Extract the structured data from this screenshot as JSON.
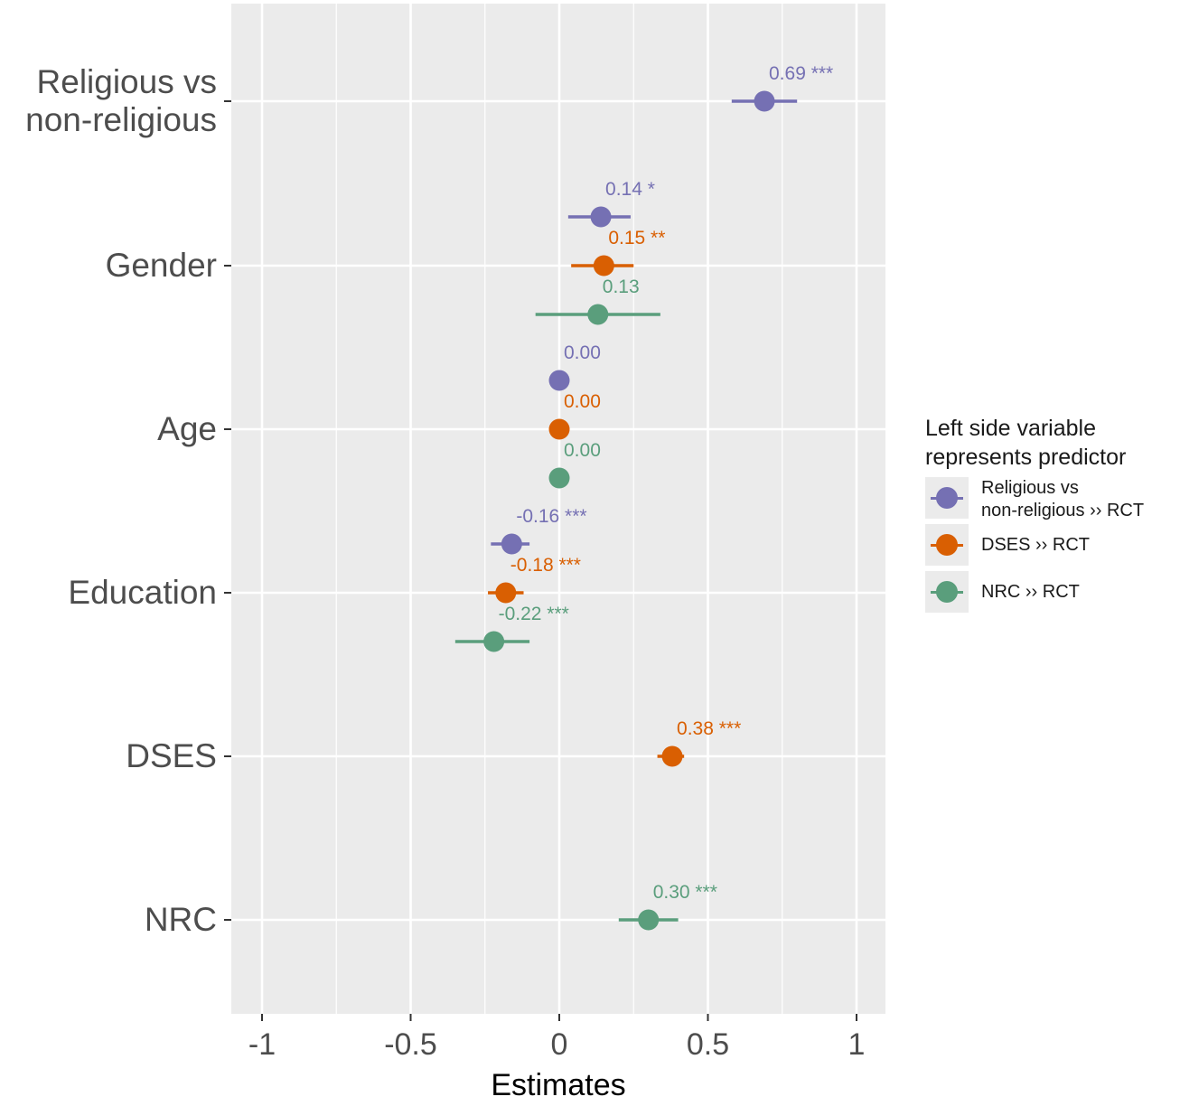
{
  "chart_data": {
    "type": "forest",
    "title": "",
    "xlabel": "Estimates",
    "ylabel": "",
    "xlim": [
      -1.1,
      1.1
    ],
    "x_ticks": [
      -1,
      -0.5,
      0,
      0.5,
      1
    ],
    "x_tick_labels": [
      "-1",
      "-0.5",
      "0",
      "0.5",
      "1"
    ],
    "grid": true,
    "categories": [
      {
        "label": "Religious vs\nnon-religious"
      },
      {
        "label": "Gender"
      },
      {
        "label": "Age"
      },
      {
        "label": "Education"
      },
      {
        "label": "DSES"
      },
      {
        "label": "NRC"
      }
    ],
    "series": [
      {
        "name": "Religious vs\nnon-religious ›› RCT",
        "color": "#7570b3",
        "points": [
          {
            "category": "Religious vs\nnon-religious",
            "estimate": 0.69,
            "ci": [
              0.58,
              0.8
            ],
            "label": "0.69 ***"
          },
          {
            "category": "Gender",
            "estimate": 0.14,
            "ci": [
              0.03,
              0.24
            ],
            "label": "0.14 *"
          },
          {
            "category": "Age",
            "estimate": 0.0,
            "ci": [
              0.0,
              0.0
            ],
            "label": "0.00"
          },
          {
            "category": "Education",
            "estimate": -0.16,
            "ci": [
              -0.23,
              -0.1
            ],
            "label": "-0.16 ***"
          }
        ]
      },
      {
        "name": "DSES ›› RCT",
        "color": "#d95f02",
        "points": [
          {
            "category": "Gender",
            "estimate": 0.15,
            "ci": [
              0.04,
              0.25
            ],
            "label": "0.15 **"
          },
          {
            "category": "Age",
            "estimate": 0.0,
            "ci": [
              0.0,
              0.0
            ],
            "label": "0.00"
          },
          {
            "category": "Education",
            "estimate": -0.18,
            "ci": [
              -0.24,
              -0.12
            ],
            "label": "-0.18 ***"
          },
          {
            "category": "DSES",
            "estimate": 0.38,
            "ci": [
              0.33,
              0.42
            ],
            "label": "0.38 ***"
          }
        ]
      },
      {
        "name": "NRC ›› RCT",
        "color": "#5a9e7c",
        "points": [
          {
            "category": "Gender",
            "estimate": 0.13,
            "ci": [
              -0.08,
              0.34
            ],
            "label": "0.13"
          },
          {
            "category": "Age",
            "estimate": 0.0,
            "ci": [
              0.0,
              0.0
            ],
            "label": "0.00"
          },
          {
            "category": "Education",
            "estimate": -0.22,
            "ci": [
              -0.35,
              -0.1
            ],
            "label": "-0.22 ***"
          },
          {
            "category": "NRC",
            "estimate": 0.3,
            "ci": [
              0.2,
              0.4
            ],
            "label": "0.30 ***"
          }
        ]
      }
    ],
    "legend": {
      "title": "Left side variable\nrepresents predictor",
      "position": "right"
    }
  }
}
